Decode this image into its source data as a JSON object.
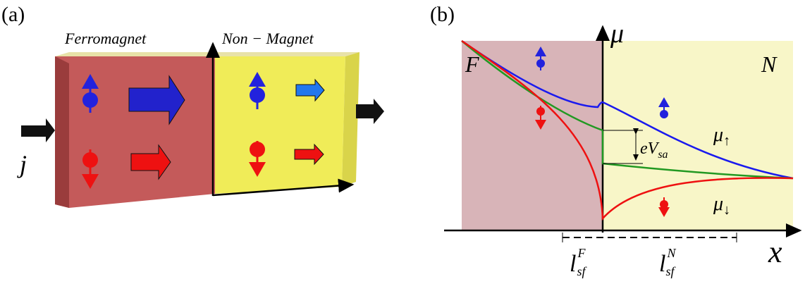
{
  "panel_a": {
    "label": "(a)",
    "ferromagnet": "Ferromagnet",
    "nonmagnet": "Non − Magnet",
    "current": "j"
  },
  "panel_b": {
    "label": "(b)",
    "f_region": "F",
    "n_region": "N",
    "mu_axis": "μ",
    "x_axis": "x",
    "mu_up": {
      "base": "μ",
      "sub": "↑"
    },
    "mu_down": {
      "base": "μ",
      "sub": "↓"
    },
    "voltage": {
      "base": "eV",
      "sub": "sa"
    },
    "length_f": {
      "base": "l",
      "sub": "sf",
      "sup": "F"
    },
    "length_n": {
      "base": "l",
      "sub": "sf",
      "sup": "N"
    }
  }
}
